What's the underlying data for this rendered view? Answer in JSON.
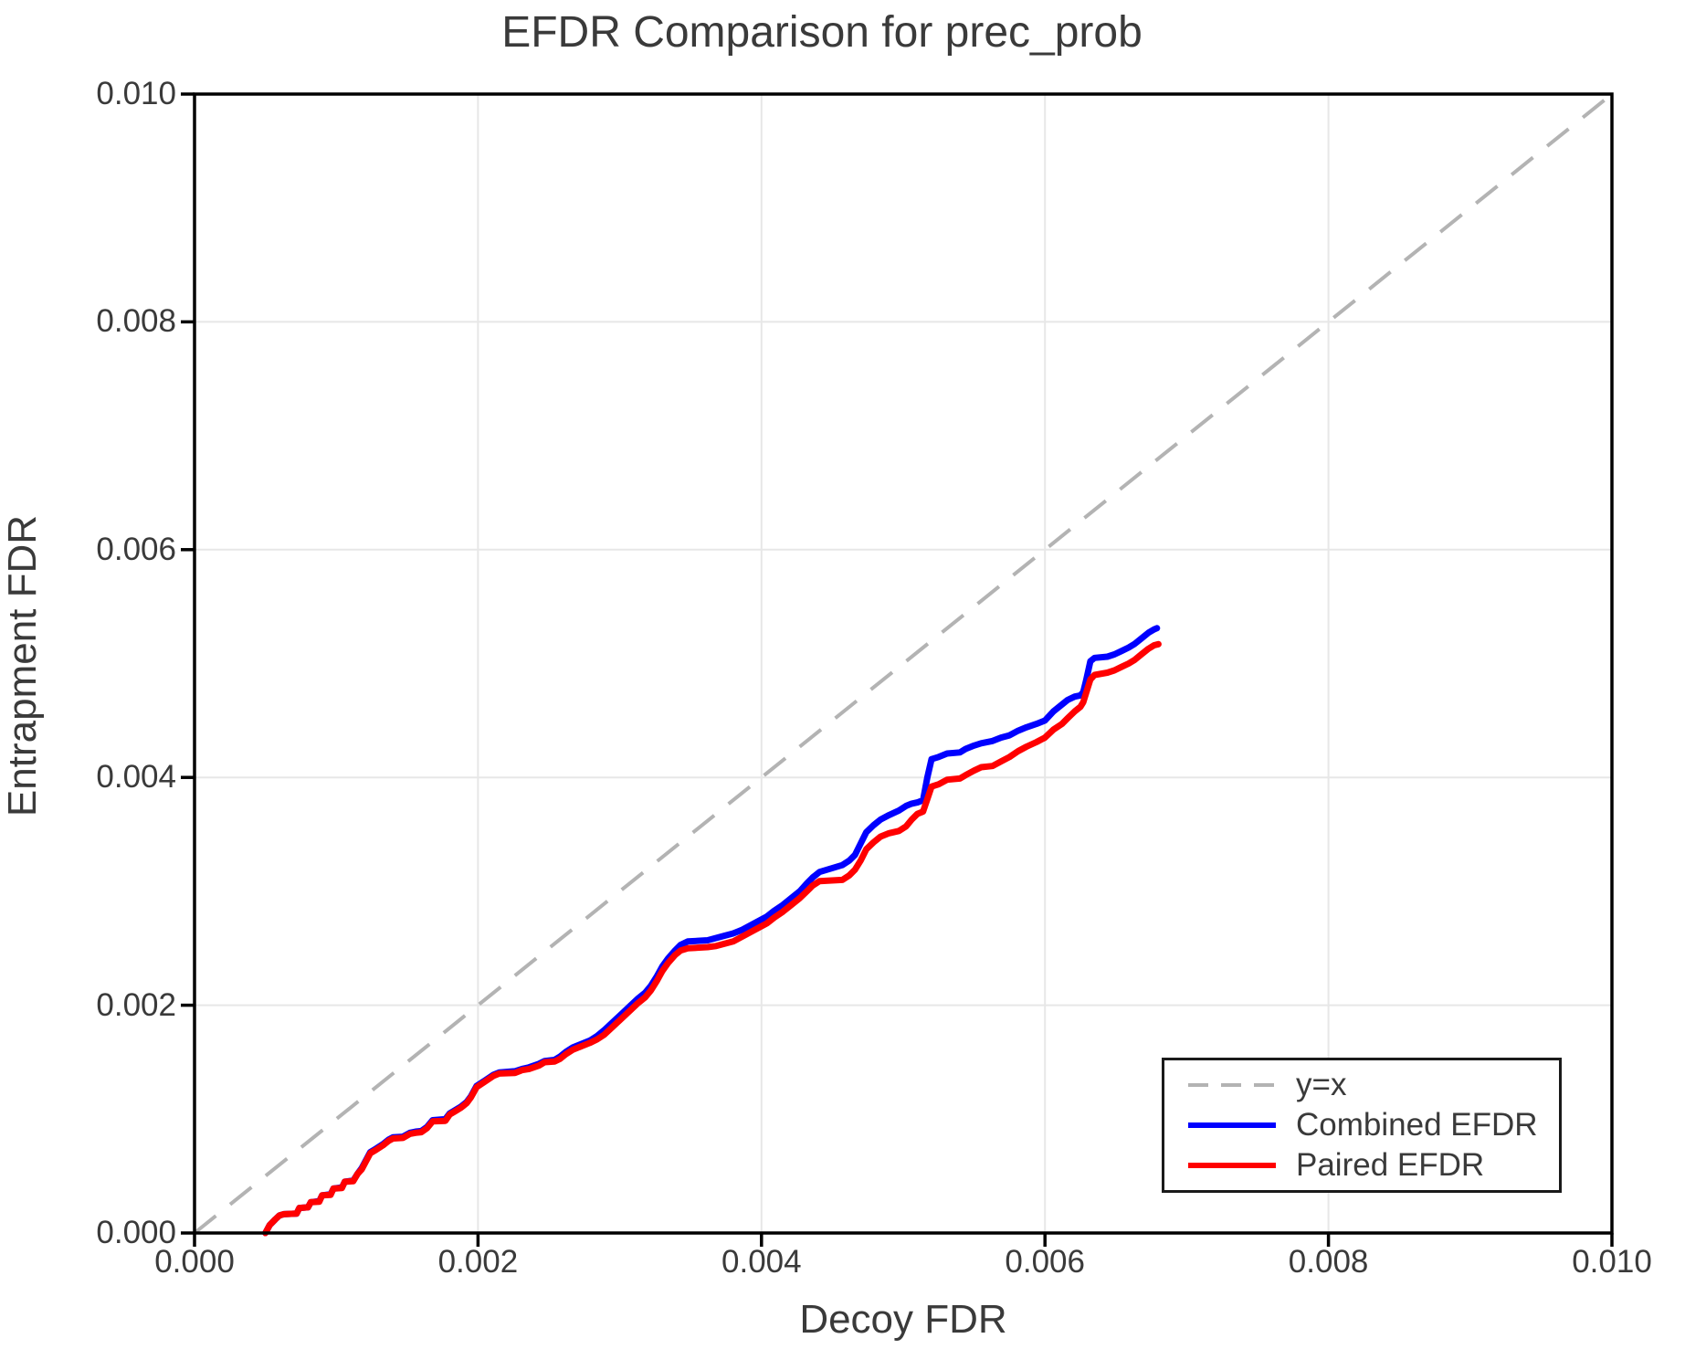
{
  "title": "EFDR Comparison for prec_prob",
  "colors": {
    "combined": "#0000ff",
    "paired": "#ff0000",
    "identity": "#b3b3b3",
    "grid": "#e7e7e7",
    "spine": "#000000",
    "text": "#3a3a3a"
  },
  "legend": {
    "items": [
      {
        "label": "y=x",
        "color": "#b3b3b3",
        "style": "dashed"
      },
      {
        "label": "Combined EFDR",
        "color": "#0000ff",
        "style": "solid"
      },
      {
        "label": "Paired EFDR",
        "color": "#ff0000",
        "style": "solid"
      }
    ]
  },
  "chart_data": {
    "type": "line",
    "title": "EFDR Comparison for prec_prob",
    "xlabel": "Decoy FDR",
    "ylabel": "Entrapment FDR",
    "xlim": [
      0.0,
      0.01
    ],
    "ylim": [
      0.0,
      0.01
    ],
    "x_ticks": [
      0.0,
      0.002,
      0.004,
      0.006,
      0.008,
      0.01
    ],
    "y_ticks": [
      0.0,
      0.002,
      0.004,
      0.006,
      0.008,
      0.01
    ],
    "x_tick_labels": [
      "0.000",
      "0.002",
      "0.004",
      "0.006",
      "0.008",
      "0.010"
    ],
    "y_tick_labels": [
      "0.000",
      "0.002",
      "0.004",
      "0.006",
      "0.008",
      "0.010"
    ],
    "grid": true,
    "legend_position": "lower right",
    "identity_line": {
      "name": "y=x",
      "from": [
        0.0,
        0.0
      ],
      "to": [
        0.01,
        0.01
      ],
      "style": "dashed"
    },
    "series": [
      {
        "name": "Combined EFDR",
        "color": "#0000ff",
        "points": [
          [
            0.0005,
            0.0
          ],
          [
            0.00053,
            7e-05
          ],
          [
            0.00057,
            0.00012
          ],
          [
            0.0006,
            0.000155
          ],
          [
            0.00063,
            0.000165
          ],
          [
            0.00072,
            0.00017
          ],
          [
            0.00074,
            0.00022
          ],
          [
            0.0008,
            0.000225
          ],
          [
            0.00082,
            0.00027
          ],
          [
            0.00088,
            0.00028
          ],
          [
            0.0009,
            0.00033
          ],
          [
            0.00096,
            0.00034
          ],
          [
            0.00098,
            0.00039
          ],
          [
            0.00104,
            0.0004
          ],
          [
            0.00106,
            0.00045
          ],
          [
            0.00112,
            0.00046
          ],
          [
            0.00115,
            0.00052
          ],
          [
            0.00118,
            0.00057
          ],
          [
            0.00121,
            0.00064
          ],
          [
            0.00124,
            0.00071
          ],
          [
            0.00128,
            0.00074
          ],
          [
            0.00133,
            0.00078
          ],
          [
            0.00137,
            0.00082
          ],
          [
            0.0014,
            0.00084
          ],
          [
            0.00147,
            0.000845
          ],
          [
            0.00152,
            0.00088
          ],
          [
            0.00156,
            0.00089
          ],
          [
            0.0016,
            0.000895
          ],
          [
            0.00164,
            0.00093
          ],
          [
            0.00168,
            0.00099
          ],
          [
            0.00177,
            0.001
          ],
          [
            0.0018,
            0.00105
          ],
          [
            0.00184,
            0.00108
          ],
          [
            0.00188,
            0.00111
          ],
          [
            0.00192,
            0.00115
          ],
          [
            0.00195,
            0.0012
          ],
          [
            0.00199,
            0.00129
          ],
          [
            0.00205,
            0.00134
          ],
          [
            0.00211,
            0.00139
          ],
          [
            0.00215,
            0.00141
          ],
          [
            0.00226,
            0.00142
          ],
          [
            0.00231,
            0.00144
          ],
          [
            0.00236,
            0.001455
          ],
          [
            0.00243,
            0.001485
          ],
          [
            0.00247,
            0.00151
          ],
          [
            0.00254,
            0.00152
          ],
          [
            0.00258,
            0.00155
          ],
          [
            0.00262,
            0.00159
          ],
          [
            0.00267,
            0.00163
          ],
          [
            0.00273,
            0.00166
          ],
          [
            0.00279,
            0.00169
          ],
          [
            0.00284,
            0.00173
          ],
          [
            0.00289,
            0.00178
          ],
          [
            0.00295,
            0.00185
          ],
          [
            0.00301,
            0.00192
          ],
          [
            0.00307,
            0.00199
          ],
          [
            0.00313,
            0.00206
          ],
          [
            0.00318,
            0.00211
          ],
          [
            0.00322,
            0.00217
          ],
          [
            0.00326,
            0.00225
          ],
          [
            0.0033,
            0.00234
          ],
          [
            0.00334,
            0.00241
          ],
          [
            0.00339,
            0.00248
          ],
          [
            0.00343,
            0.00253
          ],
          [
            0.00348,
            0.00256
          ],
          [
            0.00362,
            0.00257
          ],
          [
            0.00368,
            0.00259
          ],
          [
            0.00374,
            0.00261
          ],
          [
            0.0038,
            0.00263
          ],
          [
            0.00386,
            0.00266
          ],
          [
            0.00392,
            0.0027
          ],
          [
            0.00398,
            0.00274
          ],
          [
            0.00404,
            0.00278
          ],
          [
            0.00409,
            0.00283
          ],
          [
            0.00415,
            0.00288
          ],
          [
            0.00421,
            0.00294
          ],
          [
            0.00427,
            0.003
          ],
          [
            0.00432,
            0.00307
          ],
          [
            0.00436,
            0.00312
          ],
          [
            0.00441,
            0.00317
          ],
          [
            0.00457,
            0.00323
          ],
          [
            0.00462,
            0.00327
          ],
          [
            0.00466,
            0.00332
          ],
          [
            0.0047,
            0.00342
          ],
          [
            0.00474,
            0.00352
          ],
          [
            0.00479,
            0.00358
          ],
          [
            0.00484,
            0.00363
          ],
          [
            0.0049,
            0.00367
          ],
          [
            0.00497,
            0.00371
          ],
          [
            0.00502,
            0.00375
          ],
          [
            0.00506,
            0.00377
          ],
          [
            0.0051,
            0.00378
          ],
          [
            0.00514,
            0.0038
          ],
          [
            0.00517,
            0.004
          ],
          [
            0.0052,
            0.00416
          ],
          [
            0.00525,
            0.00418
          ],
          [
            0.00531,
            0.00421
          ],
          [
            0.0054,
            0.00422
          ],
          [
            0.00544,
            0.00425
          ],
          [
            0.0055,
            0.00428
          ],
          [
            0.00555,
            0.0043
          ],
          [
            0.00563,
            0.00432
          ],
          [
            0.00569,
            0.00435
          ],
          [
            0.00575,
            0.00437
          ],
          [
            0.00581,
            0.00441
          ],
          [
            0.00587,
            0.00444
          ],
          [
            0.00594,
            0.00447
          ],
          [
            0.006,
            0.0045
          ],
          [
            0.00606,
            0.00458
          ],
          [
            0.00612,
            0.00464
          ],
          [
            0.00616,
            0.00468
          ],
          [
            0.00621,
            0.00471
          ],
          [
            0.00625,
            0.00472
          ],
          [
            0.00627,
            0.00475
          ],
          [
            0.00629,
            0.00485
          ],
          [
            0.00632,
            0.00502
          ],
          [
            0.00635,
            0.00505
          ],
          [
            0.00644,
            0.00506
          ],
          [
            0.00649,
            0.00508
          ],
          [
            0.00654,
            0.00511
          ],
          [
            0.00659,
            0.00514
          ],
          [
            0.00663,
            0.00517
          ],
          [
            0.00668,
            0.00522
          ],
          [
            0.00673,
            0.00527
          ],
          [
            0.00677,
            0.0053
          ],
          [
            0.00679,
            0.00531
          ]
        ]
      },
      {
        "name": "Paired EFDR",
        "color": "#ff0000",
        "points": [
          [
            0.0005,
            0.0
          ],
          [
            0.00053,
            7e-05
          ],
          [
            0.00057,
            0.00012
          ],
          [
            0.0006,
            0.000155
          ],
          [
            0.00063,
            0.000165
          ],
          [
            0.00072,
            0.00017
          ],
          [
            0.00074,
            0.00022
          ],
          [
            0.0008,
            0.000225
          ],
          [
            0.00082,
            0.00027
          ],
          [
            0.00088,
            0.000275
          ],
          [
            0.0009,
            0.00033
          ],
          [
            0.00096,
            0.000335
          ],
          [
            0.00098,
            0.00039
          ],
          [
            0.00104,
            0.000395
          ],
          [
            0.00106,
            0.00045
          ],
          [
            0.00112,
            0.000455
          ],
          [
            0.00115,
            0.00052
          ],
          [
            0.00118,
            0.00056
          ],
          [
            0.00121,
            0.00063
          ],
          [
            0.00124,
            0.0007
          ],
          [
            0.00128,
            0.00073
          ],
          [
            0.00133,
            0.00077
          ],
          [
            0.00137,
            0.00081
          ],
          [
            0.0014,
            0.00083
          ],
          [
            0.00147,
            0.000835
          ],
          [
            0.00152,
            0.00087
          ],
          [
            0.00156,
            0.00088
          ],
          [
            0.0016,
            0.000885
          ],
          [
            0.00164,
            0.00092
          ],
          [
            0.00168,
            0.00098
          ],
          [
            0.00177,
            0.000985
          ],
          [
            0.0018,
            0.00104
          ],
          [
            0.00184,
            0.00107
          ],
          [
            0.00188,
            0.0011
          ],
          [
            0.00192,
            0.00114
          ],
          [
            0.00195,
            0.00119
          ],
          [
            0.00199,
            0.00128
          ],
          [
            0.00205,
            0.00133
          ],
          [
            0.00211,
            0.00138
          ],
          [
            0.00215,
            0.0014
          ],
          [
            0.00226,
            0.001405
          ],
          [
            0.00231,
            0.00143
          ],
          [
            0.00236,
            0.00144
          ],
          [
            0.00243,
            0.00147
          ],
          [
            0.00247,
            0.0015
          ],
          [
            0.00254,
            0.001505
          ],
          [
            0.00258,
            0.00153
          ],
          [
            0.00262,
            0.00157
          ],
          [
            0.00267,
            0.00161
          ],
          [
            0.00273,
            0.00164
          ],
          [
            0.00279,
            0.00167
          ],
          [
            0.00284,
            0.0017
          ],
          [
            0.00289,
            0.00174
          ],
          [
            0.00295,
            0.00181
          ],
          [
            0.00301,
            0.00188
          ],
          [
            0.00307,
            0.00195
          ],
          [
            0.00313,
            0.00202
          ],
          [
            0.00318,
            0.00207
          ],
          [
            0.00322,
            0.00213
          ],
          [
            0.00326,
            0.00221
          ],
          [
            0.0033,
            0.0023
          ],
          [
            0.00334,
            0.00237
          ],
          [
            0.00339,
            0.00244
          ],
          [
            0.00343,
            0.00248
          ],
          [
            0.00348,
            0.0025
          ],
          [
            0.00362,
            0.00251
          ],
          [
            0.00368,
            0.00252
          ],
          [
            0.00374,
            0.00254
          ],
          [
            0.0038,
            0.00256
          ],
          [
            0.00386,
            0.0026
          ],
          [
            0.00392,
            0.00264
          ],
          [
            0.00398,
            0.00268
          ],
          [
            0.00404,
            0.00272
          ],
          [
            0.00409,
            0.00277
          ],
          [
            0.00415,
            0.00282
          ],
          [
            0.00421,
            0.00288
          ],
          [
            0.00427,
            0.00294
          ],
          [
            0.00432,
            0.003
          ],
          [
            0.00436,
            0.00305
          ],
          [
            0.00441,
            0.00309
          ],
          [
            0.00457,
            0.0031
          ],
          [
            0.00462,
            0.00314
          ],
          [
            0.00466,
            0.00319
          ],
          [
            0.0047,
            0.00327
          ],
          [
            0.00474,
            0.00337
          ],
          [
            0.00479,
            0.00343
          ],
          [
            0.00484,
            0.00348
          ],
          [
            0.0049,
            0.00351
          ],
          [
            0.00497,
            0.00353
          ],
          [
            0.00502,
            0.00357
          ],
          [
            0.00506,
            0.00363
          ],
          [
            0.0051,
            0.00368
          ],
          [
            0.00514,
            0.0037
          ],
          [
            0.00517,
            0.00381
          ],
          [
            0.0052,
            0.00392
          ],
          [
            0.00525,
            0.00394
          ],
          [
            0.00531,
            0.00398
          ],
          [
            0.0054,
            0.00399
          ],
          [
            0.00544,
            0.00402
          ],
          [
            0.0055,
            0.00406
          ],
          [
            0.00555,
            0.00409
          ],
          [
            0.00563,
            0.0041
          ],
          [
            0.00569,
            0.00414
          ],
          [
            0.00575,
            0.00418
          ],
          [
            0.00581,
            0.00423
          ],
          [
            0.00587,
            0.00427
          ],
          [
            0.00594,
            0.00431
          ],
          [
            0.006,
            0.00435
          ],
          [
            0.00606,
            0.00442
          ],
          [
            0.00612,
            0.00447
          ],
          [
            0.00616,
            0.00452
          ],
          [
            0.00621,
            0.00458
          ],
          [
            0.00625,
            0.00462
          ],
          [
            0.00627,
            0.00466
          ],
          [
            0.00629,
            0.00474
          ],
          [
            0.00632,
            0.00486
          ],
          [
            0.00635,
            0.0049
          ],
          [
            0.00644,
            0.00492
          ],
          [
            0.00649,
            0.00494
          ],
          [
            0.00654,
            0.00497
          ],
          [
            0.00659,
            0.005
          ],
          [
            0.00663,
            0.00503
          ],
          [
            0.00668,
            0.00508
          ],
          [
            0.00673,
            0.00513
          ],
          [
            0.00677,
            0.00516
          ],
          [
            0.0068,
            0.00517
          ]
        ]
      }
    ]
  }
}
